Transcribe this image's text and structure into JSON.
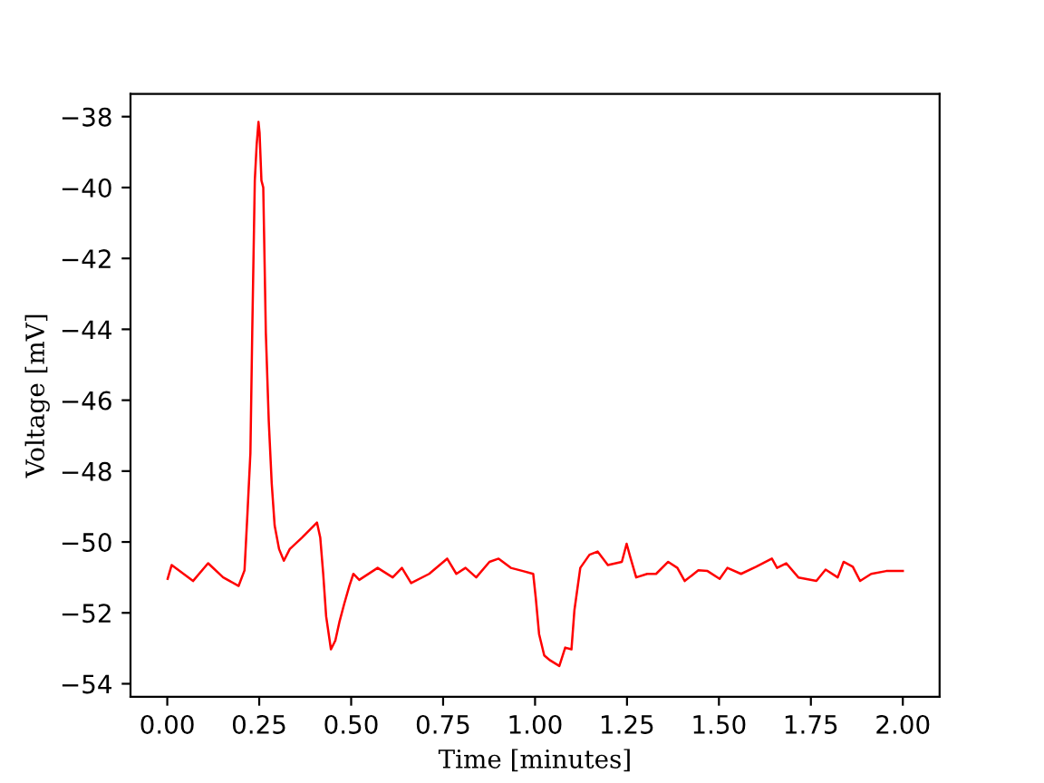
{
  "chart_data": {
    "type": "line",
    "xlabel": "Time [minutes]",
    "ylabel": "Voltage [mV]",
    "x": [
      0.001,
      0.012,
      0.07,
      0.111,
      0.152,
      0.194,
      0.21,
      0.218,
      0.226,
      0.231,
      0.238,
      0.243,
      0.248,
      0.251,
      0.256,
      0.261,
      0.268,
      0.276,
      0.284,
      0.292,
      0.304,
      0.317,
      0.333,
      0.366,
      0.407,
      0.416,
      0.424,
      0.432,
      0.445,
      0.457,
      0.468,
      0.481,
      0.495,
      0.506,
      0.522,
      0.572,
      0.613,
      0.638,
      0.663,
      0.712,
      0.761,
      0.786,
      0.811,
      0.84,
      0.876,
      0.901,
      0.934,
      0.967,
      0.995,
      1.002,
      1.011,
      1.025,
      1.041,
      1.066,
      1.082,
      1.099,
      1.107,
      1.123,
      1.148,
      1.17,
      1.198,
      1.236,
      1.249,
      1.258,
      1.275,
      1.305,
      1.329,
      1.362,
      1.387,
      1.407,
      1.444,
      1.469,
      1.502,
      1.523,
      1.56,
      1.601,
      1.644,
      1.658,
      1.683,
      1.716,
      1.765,
      1.79,
      1.823,
      1.839,
      1.864,
      1.884,
      1.914,
      1.955,
      2.0
    ],
    "series": [
      {
        "color": "#ff0000",
        "values": [
          -51.04,
          -50.65,
          -51.1,
          -50.6,
          -51.0,
          -51.24,
          -50.8,
          -49.2,
          -47.5,
          -44.1,
          -39.8,
          -38.8,
          -38.15,
          -38.46,
          -39.8,
          -40.0,
          -44.1,
          -46.6,
          -48.35,
          -49.54,
          -50.2,
          -50.53,
          -50.2,
          -49.88,
          -49.45,
          -49.88,
          -50.9,
          -52.1,
          -53.03,
          -52.78,
          -52.26,
          -51.75,
          -51.24,
          -50.9,
          -51.07,
          -50.73,
          -51.0,
          -50.73,
          -51.16,
          -50.9,
          -50.47,
          -50.9,
          -50.73,
          -51.0,
          -50.56,
          -50.47,
          -50.73,
          -50.82,
          -50.9,
          -51.58,
          -52.6,
          -53.2,
          -53.34,
          -53.5,
          -52.98,
          -53.03,
          -51.93,
          -50.73,
          -50.36,
          -50.27,
          -50.65,
          -50.56,
          -50.05,
          -50.39,
          -51.0,
          -50.9,
          -50.9,
          -50.56,
          -50.73,
          -51.1,
          -50.8,
          -50.82,
          -51.04,
          -50.73,
          -50.9,
          -50.7,
          -50.47,
          -50.73,
          -50.6,
          -51.0,
          -51.1,
          -50.78,
          -51.0,
          -50.56,
          -50.7,
          -51.1,
          -50.9,
          -50.82,
          -50.82
        ]
      }
    ],
    "xlim": [
      -0.1,
      2.1
    ],
    "xticks": [
      {
        "value": 0,
        "label": "0.00"
      },
      {
        "value": 0.25,
        "label": "0.25"
      },
      {
        "value": 0.5,
        "label": "0.50"
      },
      {
        "value": 0.75,
        "label": "0.75"
      },
      {
        "value": 1,
        "label": "1.00"
      },
      {
        "value": 1.25,
        "label": "1.25"
      },
      {
        "value": 1.5,
        "label": "1.50"
      },
      {
        "value": 1.75,
        "label": "1.75"
      },
      {
        "value": 2,
        "label": "2.00"
      }
    ],
    "ylim": [
      -54.37,
      -37.36
    ],
    "yticks": [
      {
        "value": -54,
        "label": "−54"
      },
      {
        "value": -52,
        "label": "−52"
      },
      {
        "value": -50,
        "label": "−50"
      },
      {
        "value": -48,
        "label": "−48"
      },
      {
        "value": -46,
        "label": "−46"
      },
      {
        "value": -44,
        "label": "−44"
      },
      {
        "value": -42,
        "label": "−42"
      },
      {
        "value": -40,
        "label": "−40"
      },
      {
        "value": -38,
        "label": "−38"
      }
    ],
    "grid": false,
    "marker": "none",
    "line_style": "solid"
  }
}
